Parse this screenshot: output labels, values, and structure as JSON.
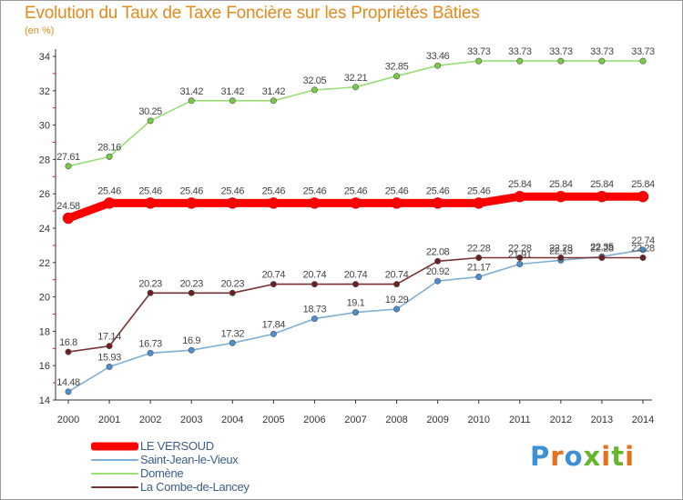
{
  "header": {
    "title": "Evolution du Taux de Taxe Foncière sur les Propriétés Bâties",
    "unit": "(en %)"
  },
  "logo": {
    "text": "Proxiti",
    "letter_colors": [
      "#3d8fd6",
      "#e8701c",
      "#3d8fd6",
      "#66b52b",
      "#e8701c",
      "#66b52b",
      "#e8701c"
    ]
  },
  "chart_data": {
    "type": "line",
    "title": "Evolution du Taux de Taxe Foncière sur les Propriétés Bâties",
    "ylabel": "(en %)",
    "xlabel": "",
    "x": [
      "2000",
      "2001",
      "2002",
      "2003",
      "2004",
      "2005",
      "2006",
      "2007",
      "2008",
      "2009",
      "2010",
      "2011",
      "2012",
      "2013",
      "2014"
    ],
    "ylim": [
      14,
      34
    ],
    "yticks": [
      14,
      16,
      18,
      20,
      22,
      24,
      26,
      28,
      30,
      32,
      34
    ],
    "grid": false,
    "legend_position": "bottom-left",
    "series": [
      {
        "name": "LE VERSOUD",
        "color": "#ff0000",
        "emphasis": "thick",
        "values": [
          24.58,
          25.46,
          25.46,
          25.46,
          25.46,
          25.46,
          25.46,
          25.46,
          25.46,
          25.46,
          25.46,
          25.84,
          25.84,
          25.84,
          25.84
        ],
        "labels": [
          "24.58",
          "25.46",
          "25.46",
          "25.46",
          "25.46",
          "25.46",
          "25.46",
          "25.46",
          "25.46",
          "25.46",
          "25.46",
          "25.84",
          "25.84",
          "25.84",
          "25.84"
        ]
      },
      {
        "name": "Saint-Jean-le-Vieux",
        "color": "#7eaed4",
        "marker_color": "#4a90cc",
        "values": [
          14.48,
          15.93,
          16.73,
          16.9,
          17.32,
          17.84,
          18.73,
          19.1,
          19.29,
          20.92,
          21.17,
          21.91,
          22.13,
          22.35,
          22.74
        ],
        "labels": [
          "14.48",
          "15.93",
          "16.73",
          "16.9",
          "17.32",
          "17.84",
          "18.73",
          "19.1",
          "19.29",
          "20.92",
          "21.17",
          "21.91",
          "22.13",
          "22.35",
          "22.74"
        ]
      },
      {
        "name": "Domène",
        "color": "#99dd77",
        "marker_color": "#77cc44",
        "values": [
          27.61,
          28.16,
          30.25,
          31.42,
          31.42,
          31.42,
          32.05,
          32.21,
          32.85,
          33.46,
          33.73,
          33.73,
          33.73,
          33.73,
          33.73
        ],
        "labels": [
          "27.61",
          "28.16",
          "30.25",
          "31.42",
          "31.42",
          "31.42",
          "32.05",
          "32.21",
          "32.85",
          "33.46",
          "33.73",
          "33.73",
          "33.73",
          "33.73",
          "33.73"
        ]
      },
      {
        "name": "La Combe-de-Lancey",
        "color": "#7a3030",
        "marker_color": "#6a2020",
        "values": [
          16.8,
          17.14,
          20.23,
          20.23,
          20.23,
          20.74,
          20.74,
          20.74,
          20.74,
          22.08,
          22.28,
          22.28,
          22.28,
          22.28,
          22.28
        ],
        "labels": [
          "16.8",
          "17.14",
          "20.23",
          "20.23",
          "20.23",
          "20.74",
          "20.74",
          "20.74",
          "20.74",
          "22.08",
          "22.28",
          "22.28",
          "22.28",
          "22.28",
          "22.28"
        ]
      }
    ]
  }
}
